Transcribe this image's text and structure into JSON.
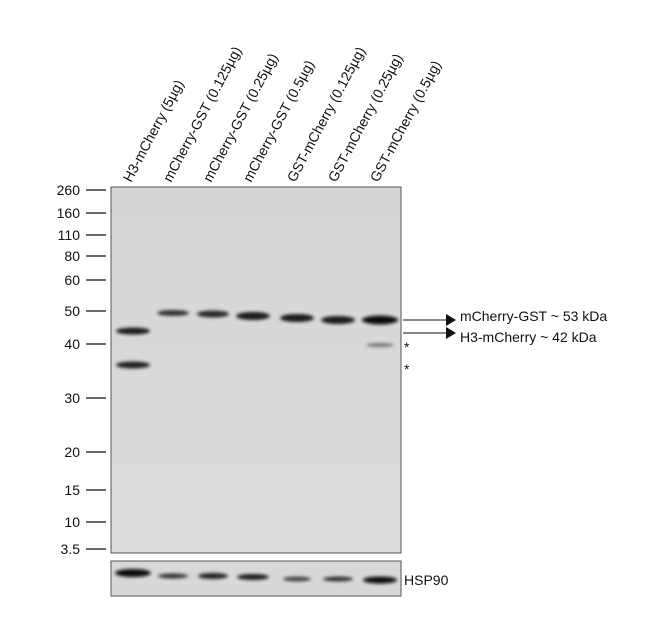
{
  "lanes": [
    "H3-mCherry (5µg)",
    "mCherry-GST (0.125µg)",
    "mCherry-GST (0.25µg)",
    "mCherry-GST (0.5µg)",
    "GST-mCherry (0.125µg)",
    "GST-mCherry (0.25µg)",
    "GST-mCherry (0.5µg)"
  ],
  "markers": [
    "260",
    "160",
    "110",
    "80",
    "60",
    "50",
    "40",
    "30",
    "20",
    "15",
    "10",
    "3.5"
  ],
  "annotations": [
    "mCherry-GST ~ 53 kDa",
    "H3-mCherry ~ 42 kDa"
  ],
  "asterisks": [
    "*",
    "*"
  ],
  "loading_control": "HSP90"
}
